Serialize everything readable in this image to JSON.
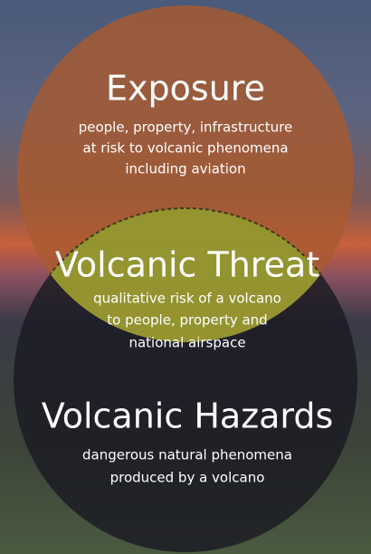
{
  "exposure": {
    "title": "Exposure",
    "lines": [
      "people, property, infrastructure",
      "at risk to volcanic phenomena",
      "including aviation"
    ]
  },
  "threat": {
    "title": "Volcanic Threat",
    "lines": [
      "qualitative risk of a volcano",
      "to people, property and",
      "national airspace"
    ]
  },
  "hazards": {
    "title": "Volcanic Hazards",
    "lines": [
      "dangerous natural phenomena",
      "produced by a volcano"
    ]
  }
}
